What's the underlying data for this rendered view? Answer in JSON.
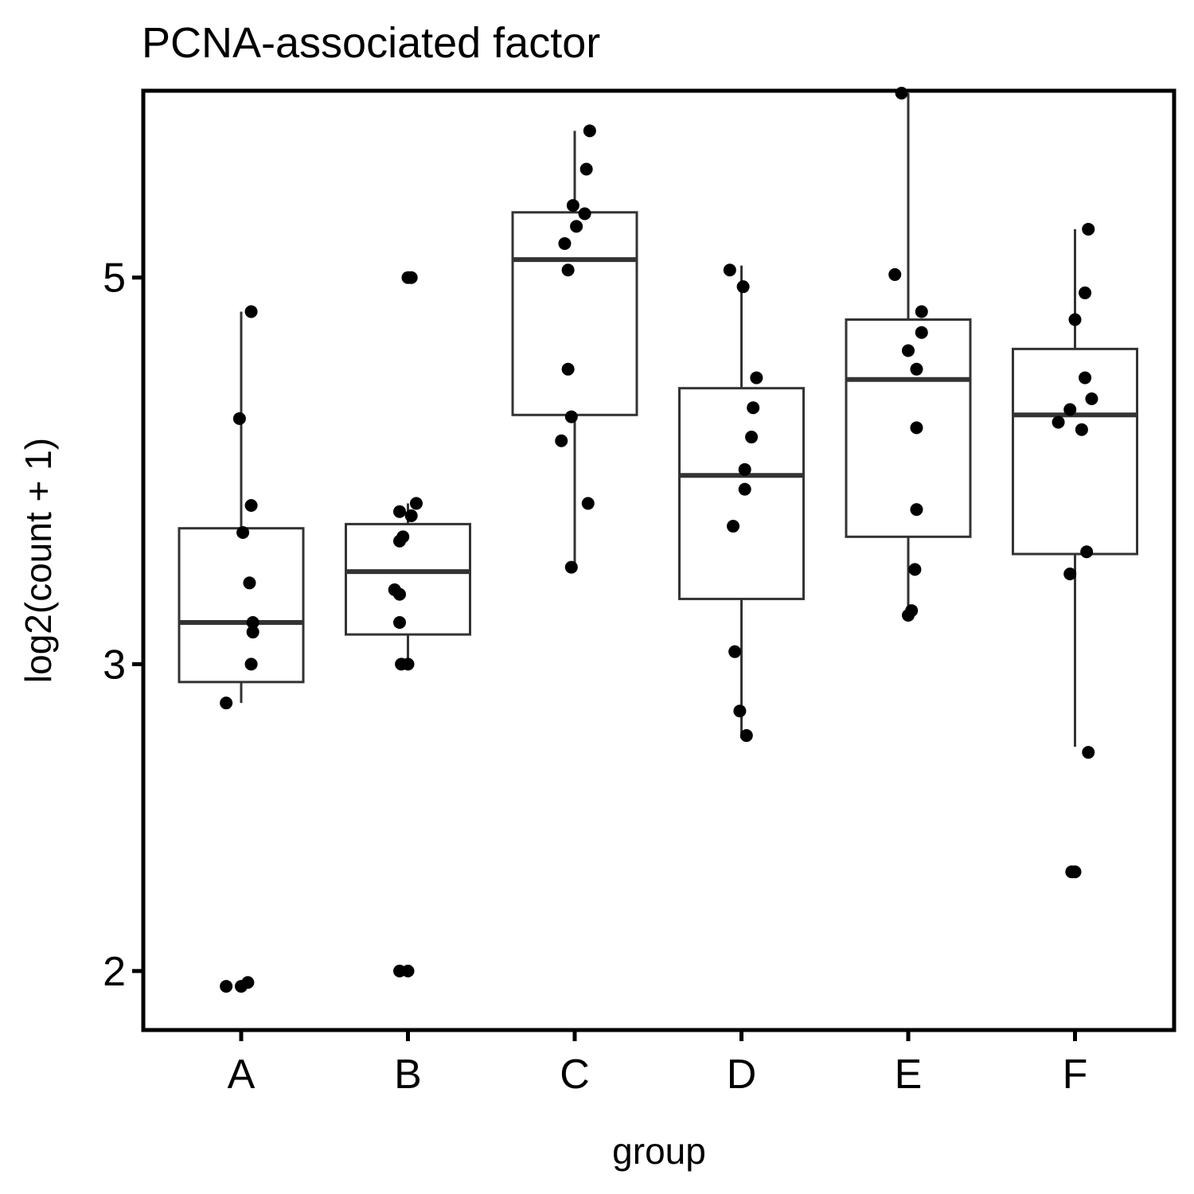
{
  "chart_data": {
    "type": "box",
    "title": "PCNA-associated factor",
    "xlabel": "group",
    "ylabel": "log2(count + 1)",
    "y_scale": "log2",
    "ylim": [
      1.85,
      6.4
    ],
    "y_ticks": [
      2,
      3,
      5
    ],
    "y_tick_labels": [
      "2",
      "3",
      "5"
    ],
    "grid": false,
    "legend": "none",
    "categories": [
      "A",
      "B",
      "C",
      "D",
      "E",
      "F"
    ],
    "boxes": [
      {
        "group": "A",
        "q1": 2.93,
        "median": 3.17,
        "q3": 3.59,
        "whisker_low": 2.85,
        "whisker_high": 4.78
      },
      {
        "group": "B",
        "q1": 3.12,
        "median": 3.39,
        "q3": 3.61,
        "whisker_low": 3.0,
        "whisker_high": 3.71
      },
      {
        "group": "C",
        "q1": 4.17,
        "median": 5.12,
        "q3": 5.45,
        "whisker_low": 3.41,
        "whisker_high": 6.07
      },
      {
        "group": "D",
        "q1": 3.27,
        "median": 3.85,
        "q3": 4.32,
        "whisker_low": 2.72,
        "whisker_high": 5.08
      },
      {
        "group": "E",
        "q1": 3.55,
        "median": 4.37,
        "q3": 4.73,
        "whisker_low": 3.22,
        "whisker_high": 6.38
      },
      {
        "group": "F",
        "q1": 3.47,
        "median": 4.17,
        "q3": 4.55,
        "whisker_low": 2.69,
        "whisker_high": 5.33
      }
    ],
    "points": [
      {
        "group": "A",
        "jitter": 0.06,
        "y": 4.78
      },
      {
        "group": "A",
        "jitter": -0.01,
        "y": 4.15
      },
      {
        "group": "A",
        "jitter": 0.06,
        "y": 3.7
      },
      {
        "group": "A",
        "jitter": 0.01,
        "y": 3.57
      },
      {
        "group": "A",
        "jitter": 0.05,
        "y": 3.34
      },
      {
        "group": "A",
        "jitter": 0.07,
        "y": 3.17
      },
      {
        "group": "A",
        "jitter": 0.07,
        "y": 3.13
      },
      {
        "group": "A",
        "jitter": 0.06,
        "y": 3.0
      },
      {
        "group": "A",
        "jitter": -0.09,
        "y": 2.85
      },
      {
        "group": "A",
        "jitter": -0.09,
        "y": 1.96
      },
      {
        "group": "A",
        "jitter": 0.0,
        "y": 1.96
      },
      {
        "group": "A",
        "jitter": 0.04,
        "y": 1.97
      },
      {
        "group": "B",
        "jitter": 0.0,
        "y": 5.0
      },
      {
        "group": "B",
        "jitter": 0.02,
        "y": 5.0
      },
      {
        "group": "B",
        "jitter": 0.05,
        "y": 3.71
      },
      {
        "group": "B",
        "jitter": -0.05,
        "y": 3.67
      },
      {
        "group": "B",
        "jitter": 0.02,
        "y": 3.65
      },
      {
        "group": "B",
        "jitter": -0.03,
        "y": 3.55
      },
      {
        "group": "B",
        "jitter": -0.05,
        "y": 3.53
      },
      {
        "group": "B",
        "jitter": -0.08,
        "y": 3.31
      },
      {
        "group": "B",
        "jitter": -0.05,
        "y": 3.29
      },
      {
        "group": "B",
        "jitter": -0.05,
        "y": 3.17
      },
      {
        "group": "B",
        "jitter": -0.04,
        "y": 3.0
      },
      {
        "group": "B",
        "jitter": 0.0,
        "y": 3.0
      },
      {
        "group": "B",
        "jitter": -0.05,
        "y": 2.0
      },
      {
        "group": "B",
        "jitter": 0.0,
        "y": 2.0
      },
      {
        "group": "C",
        "jitter": 0.09,
        "y": 6.07
      },
      {
        "group": "C",
        "jitter": 0.07,
        "y": 5.77
      },
      {
        "group": "C",
        "jitter": -0.01,
        "y": 5.5
      },
      {
        "group": "C",
        "jitter": 0.06,
        "y": 5.44
      },
      {
        "group": "C",
        "jitter": 0.01,
        "y": 5.35
      },
      {
        "group": "C",
        "jitter": -0.06,
        "y": 5.23
      },
      {
        "group": "C",
        "jitter": -0.04,
        "y": 5.05
      },
      {
        "group": "C",
        "jitter": -0.04,
        "y": 4.43
      },
      {
        "group": "C",
        "jitter": -0.02,
        "y": 4.16
      },
      {
        "group": "C",
        "jitter": -0.08,
        "y": 4.03
      },
      {
        "group": "C",
        "jitter": 0.08,
        "y": 3.71
      },
      {
        "group": "C",
        "jitter": -0.02,
        "y": 3.41
      },
      {
        "group": "D",
        "jitter": -0.07,
        "y": 5.05
      },
      {
        "group": "D",
        "jitter": 0.01,
        "y": 4.94
      },
      {
        "group": "D",
        "jitter": 0.09,
        "y": 4.38
      },
      {
        "group": "D",
        "jitter": 0.07,
        "y": 4.21
      },
      {
        "group": "D",
        "jitter": 0.06,
        "y": 4.05
      },
      {
        "group": "D",
        "jitter": 0.02,
        "y": 3.88
      },
      {
        "group": "D",
        "jitter": 0.02,
        "y": 3.78
      },
      {
        "group": "D",
        "jitter": -0.05,
        "y": 3.6
      },
      {
        "group": "D",
        "jitter": -0.04,
        "y": 3.05
      },
      {
        "group": "D",
        "jitter": -0.01,
        "y": 2.82
      },
      {
        "group": "D",
        "jitter": 0.03,
        "y": 2.73
      },
      {
        "group": "E",
        "jitter": -0.08,
        "y": 5.02
      },
      {
        "group": "E",
        "jitter": 0.08,
        "y": 4.78
      },
      {
        "group": "E",
        "jitter": 0.08,
        "y": 4.65
      },
      {
        "group": "E",
        "jitter": 0.0,
        "y": 4.54
      },
      {
        "group": "E",
        "jitter": 0.05,
        "y": 4.43
      },
      {
        "group": "E",
        "jitter": 0.05,
        "y": 4.1
      },
      {
        "group": "E",
        "jitter": 0.05,
        "y": 3.68
      },
      {
        "group": "E",
        "jitter": 0.04,
        "y": 3.4
      },
      {
        "group": "E",
        "jitter": 0.02,
        "y": 3.22
      },
      {
        "group": "E",
        "jitter": 0.0,
        "y": 3.2
      },
      {
        "group": "E",
        "jitter": -0.04,
        "y": 6.38
      },
      {
        "group": "F",
        "jitter": 0.08,
        "y": 5.33
      },
      {
        "group": "F",
        "jitter": 0.06,
        "y": 4.9
      },
      {
        "group": "F",
        "jitter": 0.0,
        "y": 4.73
      },
      {
        "group": "F",
        "jitter": 0.06,
        "y": 4.38
      },
      {
        "group": "F",
        "jitter": 0.1,
        "y": 4.26
      },
      {
        "group": "F",
        "jitter": -0.03,
        "y": 4.2
      },
      {
        "group": "F",
        "jitter": -0.1,
        "y": 4.13
      },
      {
        "group": "F",
        "jitter": 0.04,
        "y": 4.09
      },
      {
        "group": "F",
        "jitter": 0.07,
        "y": 3.48
      },
      {
        "group": "F",
        "jitter": -0.03,
        "y": 3.38
      },
      {
        "group": "F",
        "jitter": 0.08,
        "y": 2.67
      },
      {
        "group": "F",
        "jitter": -0.02,
        "y": 2.28
      },
      {
        "group": "F",
        "jitter": 0.0,
        "y": 2.28
      }
    ]
  }
}
